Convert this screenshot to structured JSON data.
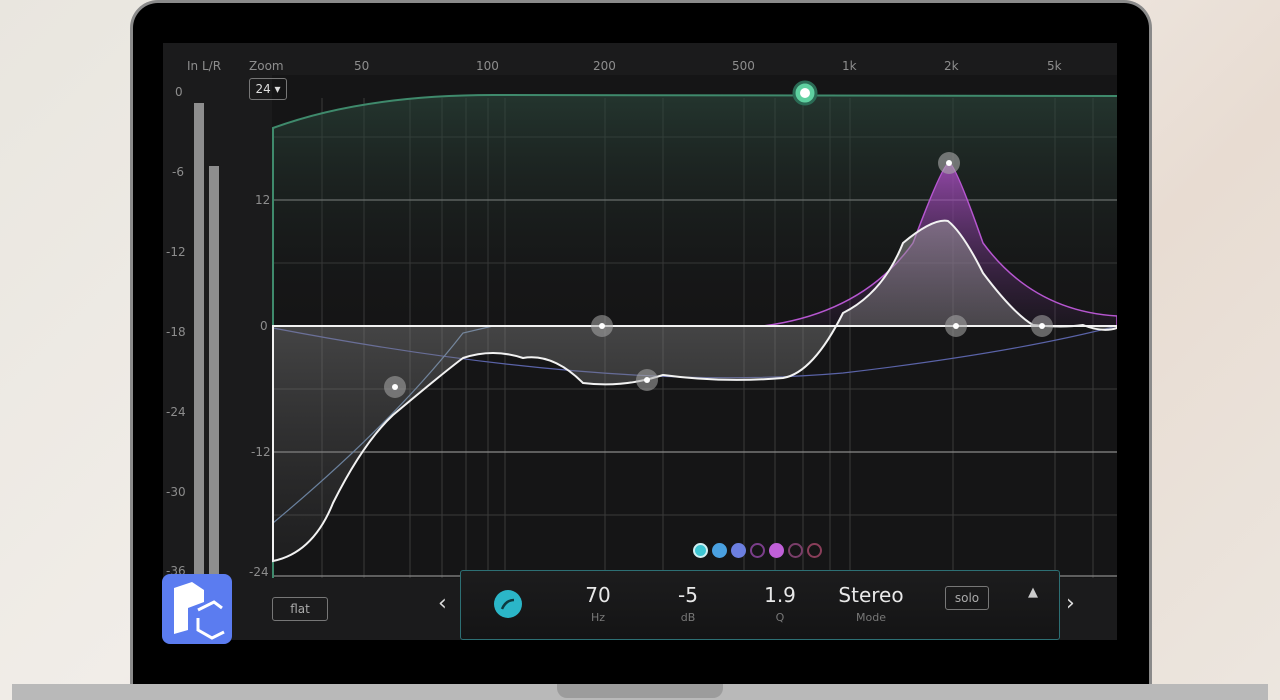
{
  "meter": {
    "title": "In L/R",
    "scale": [
      "0",
      "-6",
      "-12",
      "-18",
      "-24",
      "-30",
      "-36"
    ],
    "levels_db": [
      -1,
      -6
    ]
  },
  "zoom": {
    "label": "Zoom",
    "value": "24 ▾"
  },
  "freq_axis": [
    "50",
    "100",
    "200",
    "500",
    "1k",
    "2k",
    "5k"
  ],
  "gain_axis": [
    "12",
    "0",
    "-12",
    "-24"
  ],
  "flat_label": "flat",
  "bands": {
    "colors": [
      "#3ec6d3",
      "#4aa0e0",
      "#6c7fe0",
      "#7a3e8a",
      "#c060d8",
      "#7a3e6a",
      "#8a3e5a"
    ],
    "filled": [
      true,
      true,
      true,
      false,
      true,
      false,
      false
    ]
  },
  "band_editor": {
    "freq": {
      "value": "70",
      "unit": "Hz"
    },
    "gain": {
      "value": "-5",
      "unit": "dB"
    },
    "q": {
      "value": "1.9",
      "unit": "Q"
    },
    "mode": {
      "value": "Stereo",
      "unit": "Mode"
    },
    "solo_label": "solo",
    "prev": "‹",
    "next": "›",
    "collapse": "▲"
  },
  "logo_text": "PC"
}
